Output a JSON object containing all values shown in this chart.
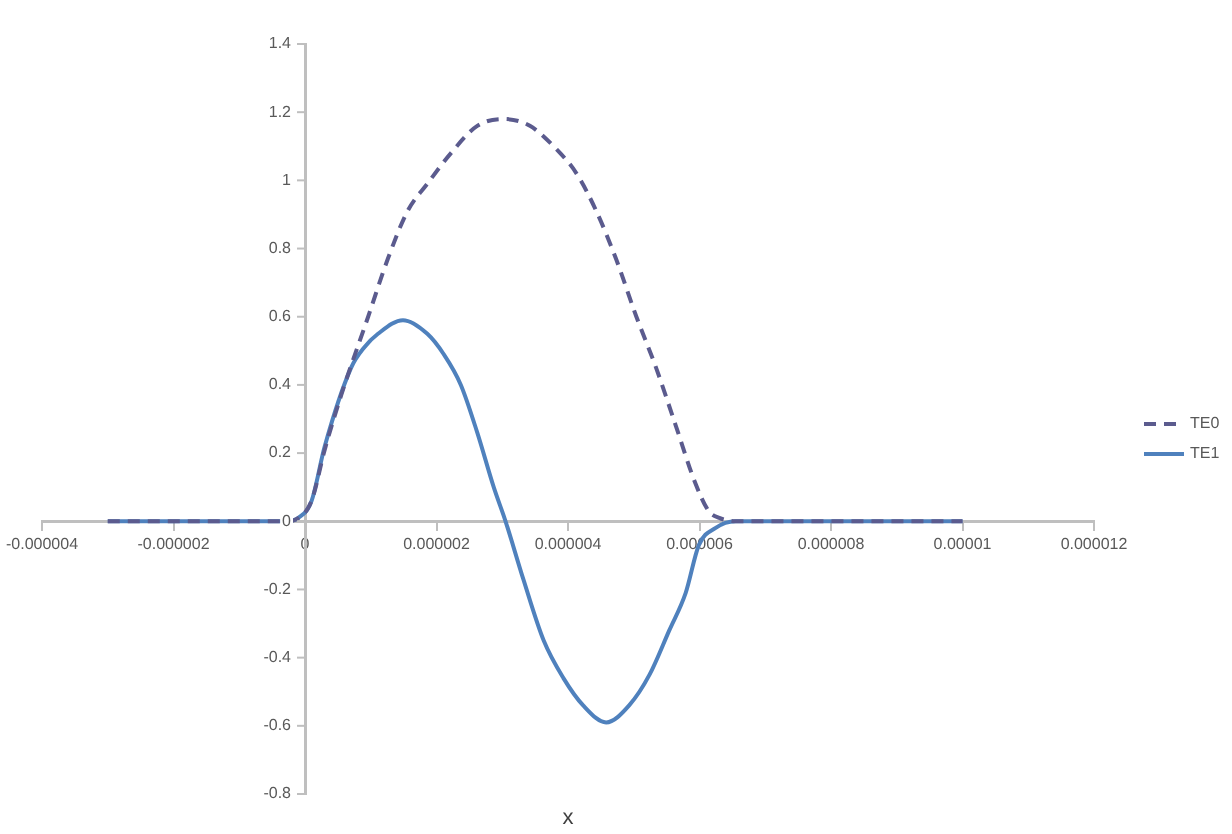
{
  "chart_data": {
    "type": "line",
    "xlabel": "x",
    "xlim": [
      -4e-06,
      1.2e-05
    ],
    "xticks": [
      {
        "value": -4e-06,
        "label": "-0.000004"
      },
      {
        "value": -2e-06,
        "label": "-0.000002"
      },
      0,
      {
        "value": 2e-06,
        "label": "0.000002"
      },
      {
        "value": 4e-06,
        "label": "0.000004"
      },
      {
        "value": 6e-06,
        "label": "0.000006"
      },
      {
        "value": 8e-06,
        "label": "0.000008"
      },
      {
        "value": 1e-05,
        "label": "0.00001"
      },
      {
        "value": 1.2e-05,
        "label": "0.000012"
      }
    ],
    "ylim": [
      -0.8,
      1.4
    ],
    "yticks": [
      -0.8,
      -0.6,
      -0.4,
      -0.2,
      0,
      0.2,
      0.4,
      0.6,
      0.8,
      1,
      1.2,
      1.4
    ],
    "legend": "right",
    "series": [
      {
        "name": "TE0",
        "color": "#5b5b8e",
        "line_style": "dashed",
        "x": [
          -3e-06,
          -3e-07,
          -1e-07,
          1e-07,
          3e-07,
          5.5e-07,
          9.6e-07,
          1.26e-06,
          1.56e-06,
          1.86e-06,
          2.22e-06,
          2.62e-06,
          3.02e-06,
          3.42e-06,
          3.83e-06,
          4.13e-06,
          4.43e-06,
          4.73e-06,
          5.04e-06,
          5.34e-06,
          5.64e-06,
          5.94e-06,
          6.14e-06,
          6.3e-06,
          6.55e-06,
          8e-06,
          1e-05
        ],
        "values": [
          0,
          0,
          0.01,
          0.06,
          0.21,
          0.37,
          0.6,
          0.77,
          0.91,
          0.99,
          1.08,
          1.16,
          1.18,
          1.16,
          1.09,
          1.02,
          0.91,
          0.77,
          0.6,
          0.45,
          0.28,
          0.11,
          0.03,
          0.01,
          0,
          0,
          0
        ]
      },
      {
        "name": "TE1",
        "color": "#4f81bd",
        "line_style": "solid",
        "x": [
          -3e-06,
          -3e-07,
          -1e-07,
          1e-07,
          3e-07,
          7e-07,
          9e-07,
          1.11e-06,
          1.49e-06,
          1.86e-06,
          2.11e-06,
          2.37e-06,
          2.62e-06,
          2.87e-06,
          3.05e-06,
          3.32e-06,
          3.63e-06,
          3.93e-06,
          4.23e-06,
          4.58e-06,
          4.93e-06,
          5.24e-06,
          5.54e-06,
          5.79e-06,
          5.99e-06,
          6.24e-06,
          6.55e-06,
          8e-06,
          1e-05
        ],
        "values": [
          0,
          0,
          0.01,
          0.06,
          0.22,
          0.45,
          0.51,
          0.55,
          0.59,
          0.55,
          0.49,
          0.4,
          0.26,
          0.1,
          0,
          -0.17,
          -0.35,
          -0.46,
          -0.54,
          -0.59,
          -0.54,
          -0.45,
          -0.32,
          -0.21,
          -0.07,
          -0.02,
          0,
          0,
          0
        ]
      }
    ]
  }
}
